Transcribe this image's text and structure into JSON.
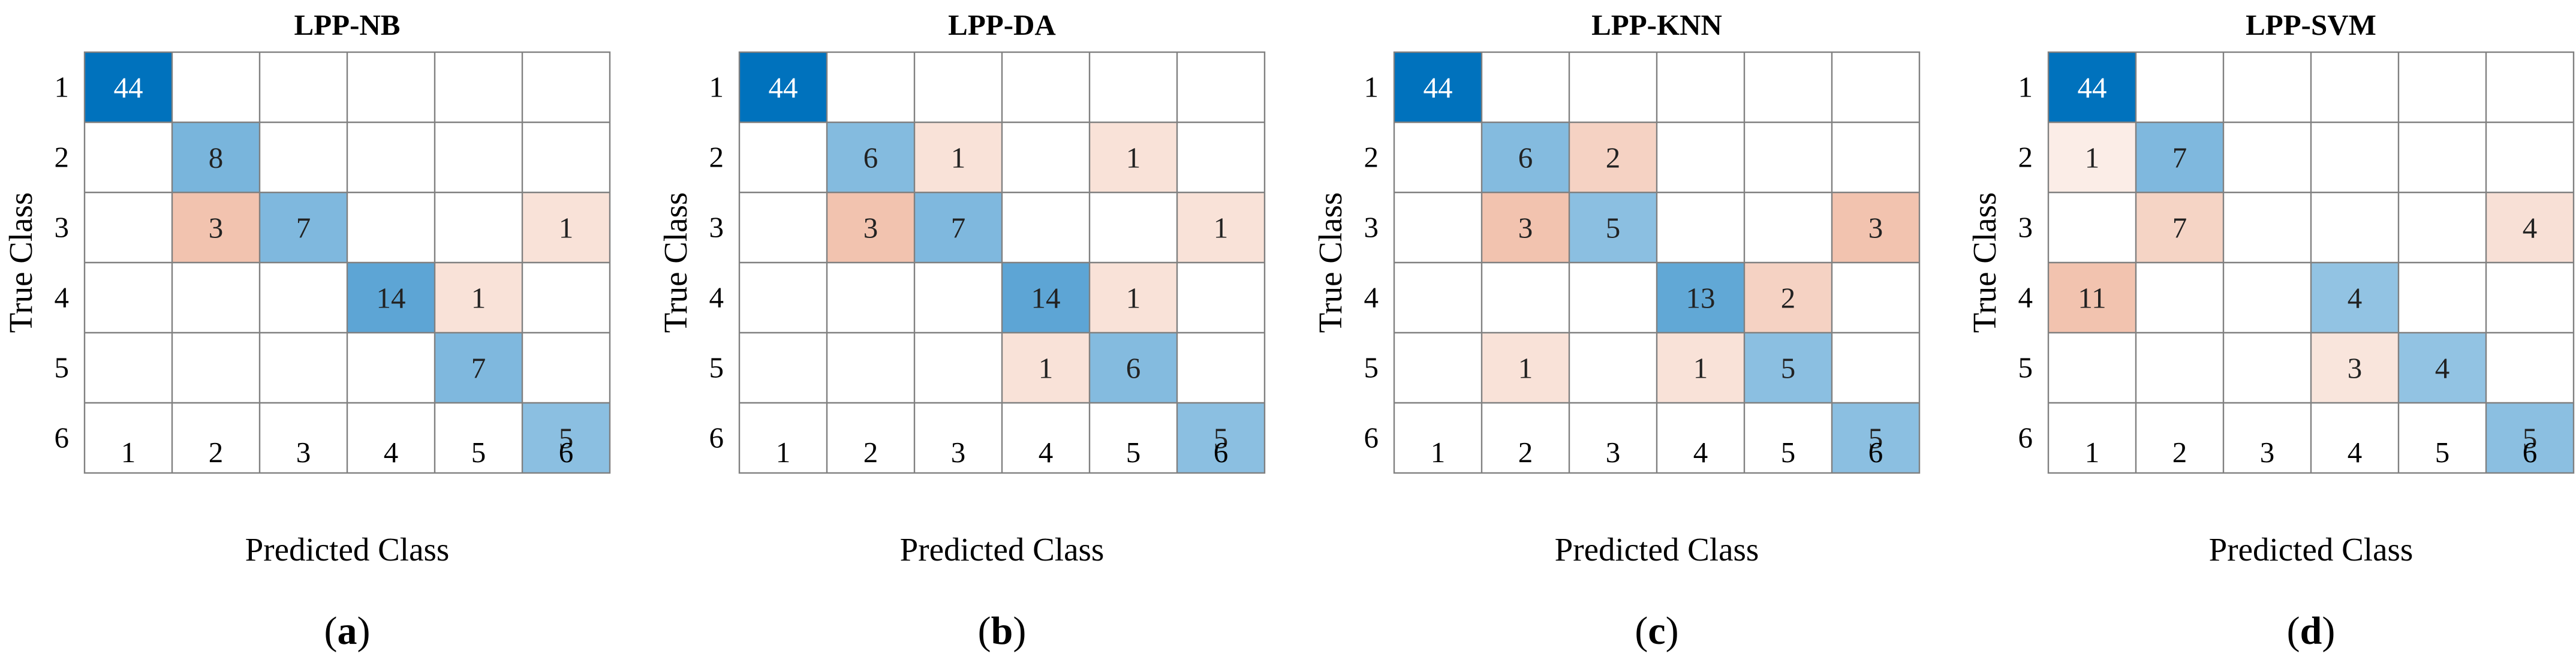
{
  "chart_data": [
    {
      "type": "heatmap",
      "title": "LPP-NB",
      "caption_letter": "a",
      "xlabel": "Predicted Class",
      "ylabel": "True Class",
      "classes": [
        "1",
        "2",
        "3",
        "4",
        "5",
        "6"
      ],
      "matrix": [
        [
          44,
          0,
          0,
          0,
          0,
          0
        ],
        [
          0,
          8,
          0,
          0,
          0,
          0
        ],
        [
          0,
          3,
          7,
          0,
          0,
          1
        ],
        [
          0,
          0,
          0,
          14,
          1,
          0
        ],
        [
          0,
          0,
          0,
          0,
          7,
          0
        ],
        [
          0,
          0,
          0,
          0,
          0,
          5
        ]
      ]
    },
    {
      "type": "heatmap",
      "title": "LPP-DA",
      "caption_letter": "b",
      "xlabel": "Predicted Class",
      "ylabel": "True Class",
      "classes": [
        "1",
        "2",
        "3",
        "4",
        "5",
        "6"
      ],
      "matrix": [
        [
          44,
          0,
          0,
          0,
          0,
          0
        ],
        [
          0,
          6,
          1,
          0,
          1,
          0
        ],
        [
          0,
          3,
          7,
          0,
          0,
          1
        ],
        [
          0,
          0,
          0,
          14,
          1,
          0
        ],
        [
          0,
          0,
          0,
          1,
          6,
          0
        ],
        [
          0,
          0,
          0,
          0,
          0,
          5
        ]
      ]
    },
    {
      "type": "heatmap",
      "title": "LPP-KNN",
      "caption_letter": "c",
      "xlabel": "Predicted Class",
      "ylabel": "True Class",
      "classes": [
        "1",
        "2",
        "3",
        "4",
        "5",
        "6"
      ],
      "matrix": [
        [
          44,
          0,
          0,
          0,
          0,
          0
        ],
        [
          0,
          6,
          2,
          0,
          0,
          0
        ],
        [
          0,
          3,
          5,
          0,
          0,
          3
        ],
        [
          0,
          0,
          0,
          13,
          2,
          0
        ],
        [
          0,
          1,
          0,
          1,
          5,
          0
        ],
        [
          0,
          0,
          0,
          0,
          0,
          5
        ]
      ]
    },
    {
      "type": "heatmap",
      "title": "LPP-SVM",
      "caption_letter": "d",
      "xlabel": "Predicted Class",
      "ylabel": "True Class",
      "classes": [
        "1",
        "2",
        "3",
        "4",
        "5",
        "6"
      ],
      "matrix": [
        [
          44,
          0,
          0,
          0,
          0,
          0
        ],
        [
          1,
          7,
          0,
          0,
          0,
          0
        ],
        [
          0,
          7,
          0,
          0,
          0,
          4
        ],
        [
          11,
          0,
          0,
          4,
          0,
          0
        ],
        [
          0,
          0,
          0,
          3,
          4,
          0
        ],
        [
          0,
          0,
          0,
          0,
          0,
          5
        ]
      ]
    }
  ],
  "colors": {
    "correct_max": "#0072bd",
    "correct_min": "#ffffff",
    "error_max": "#d95319",
    "error_min": "#ffffff",
    "grid": "#808080"
  }
}
